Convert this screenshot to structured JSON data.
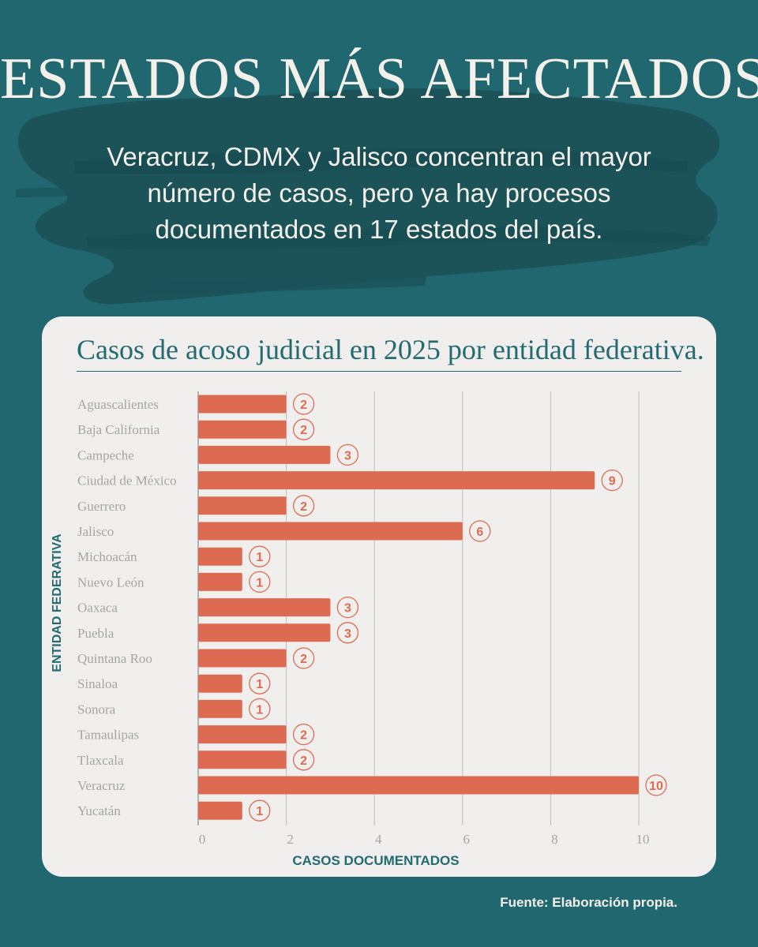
{
  "header": {
    "headline": "ESTADOS MÁS AFECTADOS:",
    "subhead": "Veracruz, CDMX y Jalisco concentran el mayor número de casos, pero ya hay procesos documentados en 17 estados del país."
  },
  "colors": {
    "background": "#216770",
    "brush": "#1b5359",
    "card": "#f0efed",
    "bar": "#dd6b52",
    "teal_text": "#236a72",
    "gridline": "#bdbdbd"
  },
  "chart_data": {
    "type": "bar",
    "orientation": "horizontal",
    "title": "Casos de acoso judicial en 2025 por entidad federativa.",
    "xlabel": "CASOS DOCUMENTADOS",
    "ylabel": "ENTIDAD FEDERATIVA",
    "xlim": [
      0,
      10
    ],
    "xticks": [
      0,
      2,
      4,
      6,
      8,
      10
    ],
    "grid": true,
    "categories": [
      "Aguascalientes",
      "Baja California",
      "Campeche",
      "Ciudad de México",
      "Guerrero",
      "Jalisco",
      "Michoacán",
      "Nuevo León",
      "Oaxaca",
      "Puebla",
      "Quintana Roo",
      "Sinaloa",
      "Sonora",
      "Tamaulipas",
      "Tlaxcala",
      "Veracruz",
      "Yucatán"
    ],
    "values": [
      2,
      2,
      3,
      9,
      2,
      6,
      1,
      1,
      3,
      3,
      2,
      1,
      1,
      2,
      2,
      10,
      1
    ]
  },
  "footer": {
    "source": "Fuente: Elaboración propia."
  }
}
